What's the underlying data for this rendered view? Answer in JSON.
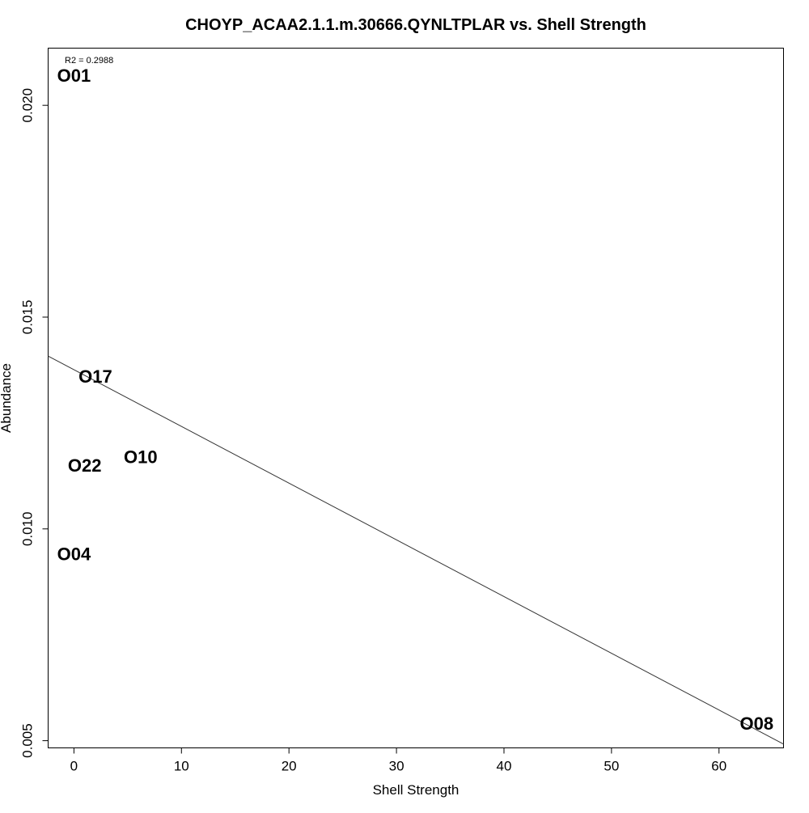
{
  "chart_data": {
    "type": "scatter",
    "title": "CHOYP_ACAA2.1.1.m.30666.QYNLTPLAR vs. Shell Strength",
    "xlabel": "Shell Strength",
    "ylabel": "Abundance",
    "xlim": [
      -2.4,
      66
    ],
    "ylim": [
      0.00483,
      0.02135
    ],
    "x_ticks": [
      0,
      10,
      20,
      30,
      40,
      50,
      60
    ],
    "x_tick_labels": [
      "0",
      "10",
      "20",
      "30",
      "40",
      "50",
      "60"
    ],
    "y_ticks": [
      0.005,
      0.01,
      0.015,
      0.02
    ],
    "y_tick_labels": [
      "0.005",
      "0.010",
      "0.015",
      "0.020"
    ],
    "grid": false,
    "annotation": "R2 = 0.2988",
    "points": [
      {
        "label": "O01",
        "x": 0.0,
        "y": 0.0207
      },
      {
        "label": "O17",
        "x": 2.0,
        "y": 0.0136
      },
      {
        "label": "O22",
        "x": 1.0,
        "y": 0.0115
      },
      {
        "label": "O10",
        "x": 6.2,
        "y": 0.0117
      },
      {
        "label": "O04",
        "x": 0.0,
        "y": 0.0094
      },
      {
        "label": "O08",
        "x": 63.5,
        "y": 0.0054
      }
    ],
    "regression_line": {
      "x": [
        -2.4,
        66
      ],
      "y": [
        0.01408,
        0.00492
      ]
    }
  }
}
